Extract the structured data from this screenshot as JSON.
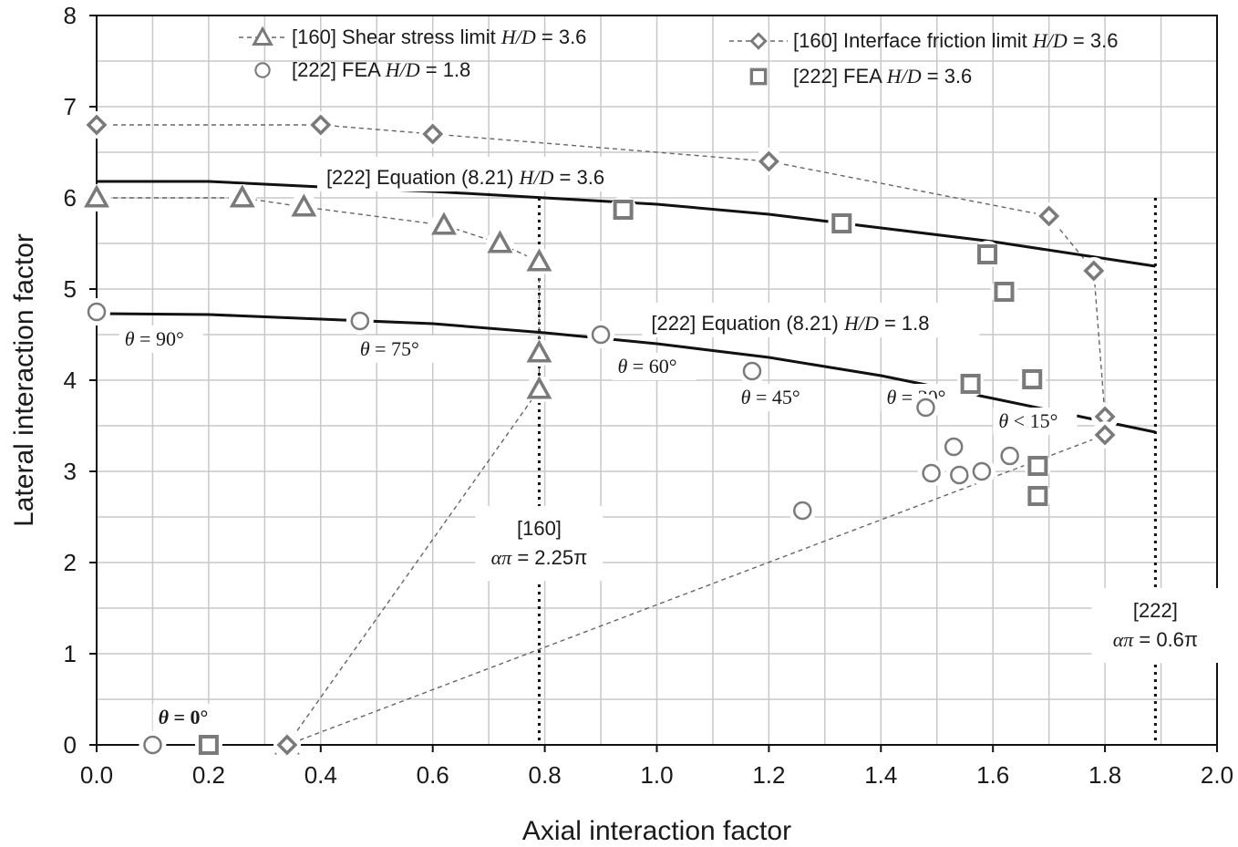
{
  "chart_data": {
    "type": "scatter",
    "xlabel": "Axial interaction factor",
    "ylabel": "Lateral interaction factor",
    "xlim": [
      0.0,
      2.0
    ],
    "ylim": [
      0,
      8
    ],
    "x_ticks": [
      "0.0",
      "0.2",
      "0.4",
      "0.6",
      "0.8",
      "1.0",
      "1.2",
      "1.4",
      "1.6",
      "1.8",
      "2.0"
    ],
    "y_ticks": [
      "0",
      "1",
      "2",
      "3",
      "4",
      "5",
      "6",
      "7",
      "8"
    ],
    "grid": true,
    "legend_position": "top",
    "series": [
      {
        "name": "[160] Shear stress limit H/D = 3.6",
        "legend_parts": [
          "[160] Shear stress limit ",
          "H/D",
          " = 3.6"
        ],
        "marker": "triangle",
        "line": "dashed",
        "points": [
          [
            0.0,
            6.0
          ],
          [
            0.26,
            6.0
          ],
          [
            0.37,
            5.9
          ],
          [
            0.62,
            5.7
          ],
          [
            0.72,
            5.5
          ],
          [
            0.79,
            5.3
          ],
          [
            0.79,
            4.3
          ],
          [
            0.79,
            3.9
          ],
          [
            0.34,
            0.0
          ]
        ]
      },
      {
        "name": "[160] Interface friction limit H/D = 3.6",
        "legend_parts": [
          "[160] Interface friction limit ",
          "H/D",
          " = 3.6"
        ],
        "marker": "diamond",
        "line": "dashed",
        "points": [
          [
            0.0,
            6.8
          ],
          [
            0.4,
            6.8
          ],
          [
            0.6,
            6.7
          ],
          [
            1.2,
            6.4
          ],
          [
            1.7,
            5.8
          ],
          [
            1.78,
            5.2
          ],
          [
            1.8,
            3.6
          ],
          [
            1.8,
            3.4
          ],
          [
            0.34,
            0.0
          ]
        ]
      },
      {
        "name": "[222] FEA H/D = 1.8",
        "legend_parts": [
          "[222] FEA ",
          "H/D",
          " = 1.8"
        ],
        "marker": "circle",
        "line": "none",
        "points": [
          [
            0.0,
            4.75
          ],
          [
            0.47,
            4.65
          ],
          [
            0.9,
            4.5
          ],
          [
            1.17,
            4.1
          ],
          [
            1.48,
            3.7
          ],
          [
            1.53,
            3.27
          ],
          [
            1.63,
            3.17
          ],
          [
            1.49,
            2.98
          ],
          [
            1.54,
            2.96
          ],
          [
            1.58,
            3.0
          ],
          [
            1.26,
            2.57
          ],
          [
            0.1,
            0.0
          ]
        ]
      },
      {
        "name": "[222] FEA H/D = 3.6",
        "legend_parts": [
          "[222] FEA ",
          "H/D",
          " = 3.6"
        ],
        "marker": "square",
        "line": "none",
        "points": [
          [
            0.94,
            5.87
          ],
          [
            1.33,
            5.72
          ],
          [
            1.59,
            5.38
          ],
          [
            1.62,
            4.97
          ],
          [
            1.56,
            3.96
          ],
          [
            1.67,
            4.01
          ],
          [
            1.68,
            3.06
          ],
          [
            1.68,
            2.73
          ],
          [
            0.2,
            0.0
          ]
        ]
      },
      {
        "name": "[222] Equation (8.21) H/D = 3.6",
        "marker": "none",
        "line": "solid",
        "points": [
          [
            0.0,
            6.18
          ],
          [
            0.2,
            6.18
          ],
          [
            0.4,
            6.12
          ],
          [
            0.6,
            6.07
          ],
          [
            0.8,
            6.0
          ],
          [
            1.0,
            5.93
          ],
          [
            1.2,
            5.82
          ],
          [
            1.4,
            5.67
          ],
          [
            1.6,
            5.52
          ],
          [
            1.89,
            5.25
          ]
        ]
      },
      {
        "name": "[222] Equation (8.21) H/D = 1.8",
        "marker": "none",
        "line": "solid",
        "points": [
          [
            0.0,
            4.73
          ],
          [
            0.2,
            4.72
          ],
          [
            0.4,
            4.67
          ],
          [
            0.6,
            4.62
          ],
          [
            0.8,
            4.52
          ],
          [
            1.0,
            4.4
          ],
          [
            1.2,
            4.25
          ],
          [
            1.4,
            4.05
          ],
          [
            1.6,
            3.8
          ],
          [
            1.89,
            3.43
          ]
        ]
      }
    ],
    "vertical_lines": [
      {
        "x": 0.79,
        "label_lines": [
          [
            "[160]"
          ],
          [
            "απ",
            " = 2.25π"
          ]
        ]
      },
      {
        "x": 1.89,
        "label_lines": [
          [
            "[222]"
          ],
          [
            "απ",
            " = 0.6π"
          ]
        ]
      }
    ],
    "curve_labels": [
      {
        "parts": [
          "[222] Equation (8.21) ",
          "H/D",
          " = 3.6"
        ],
        "x": 0.41,
        "y": 6.15
      },
      {
        "parts": [
          "[222] Equation (8.21) ",
          "H/D",
          " = 1.8"
        ],
        "x": 0.99,
        "y": 4.55
      }
    ],
    "angle_annotations": [
      {
        "parts": [
          "θ",
          " = 90°"
        ],
        "x": 0.05,
        "y": 4.38
      },
      {
        "parts": [
          "θ",
          " = 75°"
        ],
        "x": 0.47,
        "y": 4.27
      },
      {
        "parts": [
          "θ",
          " = 60°"
        ],
        "x": 0.93,
        "y": 4.08
      },
      {
        "parts": [
          "θ",
          " = 45°"
        ],
        "x": 1.15,
        "y": 3.74
      },
      {
        "parts": [
          "θ",
          " = 30°"
        ],
        "x": 1.41,
        "y": 3.74
      },
      {
        "parts": [
          "θ",
          " < 15°"
        ],
        "x": 1.61,
        "y": 3.48
      },
      {
        "parts": [
          "θ",
          " = 0°"
        ],
        "x": 0.11,
        "y": 0.23,
        "bold": true
      }
    ],
    "colors": {
      "axis": "#111111",
      "grid": "#c8c8c8",
      "marker_stroke": "#7a7a7a",
      "dashed_line": "#666666",
      "curve": "#111111"
    }
  }
}
